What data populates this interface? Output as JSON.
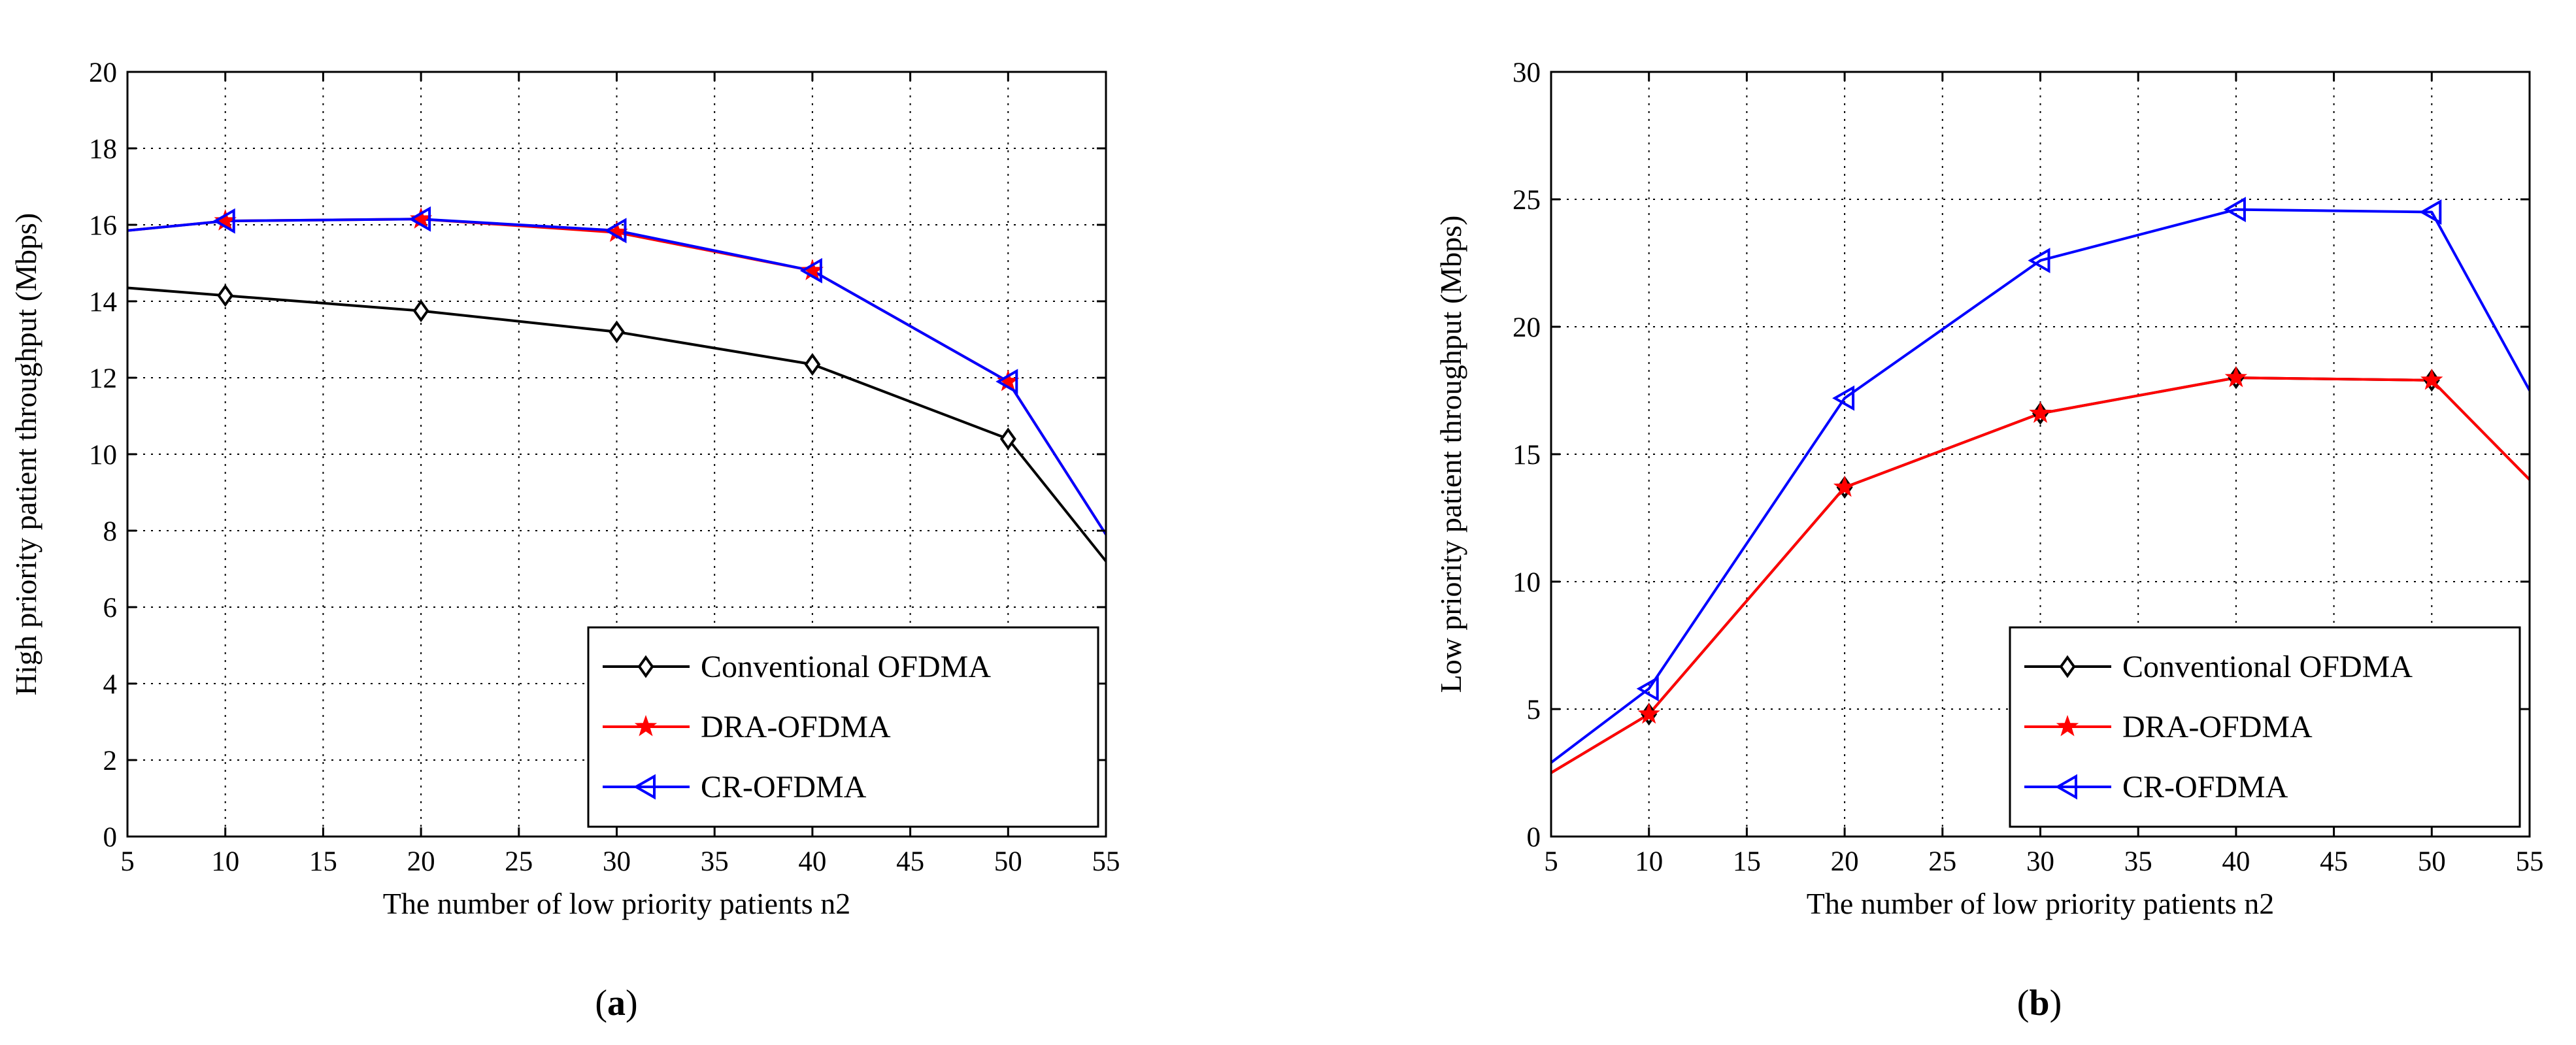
{
  "chart_data": [
    {
      "type": "line",
      "caption": {
        "open": "(",
        "letter": "a",
        "close": ")"
      },
      "xlabel": "The number of low priority patients n2",
      "ylabel": "High priority patient throughput (Mbps)",
      "xlim": [
        5,
        55
      ],
      "ylim": [
        0,
        20
      ],
      "xticks": [
        5,
        10,
        15,
        20,
        25,
        30,
        35,
        40,
        45,
        50,
        55
      ],
      "yticks": [
        0,
        2,
        4,
        6,
        8,
        10,
        12,
        14,
        16,
        18,
        20
      ],
      "grid": true,
      "legend_position": "bottom-right",
      "series": [
        {
          "name": "Conventional OFDMA",
          "color": "#000000",
          "marker": "diamond",
          "x": [
            5,
            10,
            20,
            30,
            40,
            50,
            55
          ],
          "y": [
            14.35,
            14.15,
            13.75,
            13.2,
            12.35,
            10.4,
            7.2
          ],
          "marker_x": [
            10,
            20,
            30,
            40,
            50
          ]
        },
        {
          "name": "DRA-OFDMA",
          "color": "#ff0000",
          "marker": "star",
          "x": [
            5,
            10,
            20,
            30,
            40,
            50,
            55
          ],
          "y": [
            15.85,
            16.1,
            16.15,
            15.8,
            14.8,
            11.9,
            7.9
          ],
          "marker_x": [
            10,
            20,
            30,
            40,
            50
          ]
        },
        {
          "name": "CR-OFDMA",
          "color": "#0000ff",
          "marker": "triangle-left",
          "x": [
            5,
            10,
            20,
            30,
            40,
            50,
            55
          ],
          "y": [
            15.85,
            16.1,
            16.15,
            15.85,
            14.8,
            11.9,
            7.9
          ],
          "marker_x": [
            10,
            20,
            30,
            40,
            50
          ]
        }
      ]
    },
    {
      "type": "line",
      "caption": {
        "open": "(",
        "letter": "b",
        "close": ")"
      },
      "xlabel": "The number of low priority patients n2",
      "ylabel": "Low priority patient throughput (Mbps)",
      "xlim": [
        5,
        55
      ],
      "ylim": [
        0,
        30
      ],
      "xticks": [
        5,
        10,
        15,
        20,
        25,
        30,
        35,
        40,
        45,
        50,
        55
      ],
      "yticks": [
        0,
        5,
        10,
        15,
        20,
        25,
        30
      ],
      "grid": true,
      "legend_position": "bottom-right",
      "series": [
        {
          "name": "Conventional OFDMA",
          "color": "#000000",
          "marker": "diamond",
          "x": [
            5,
            10,
            20,
            30,
            40,
            50,
            55
          ],
          "y": [
            2.5,
            4.8,
            13.7,
            16.6,
            18.0,
            17.9,
            14.0
          ],
          "marker_x": [
            10,
            20,
            30,
            40,
            50
          ]
        },
        {
          "name": "DRA-OFDMA",
          "color": "#ff0000",
          "marker": "star",
          "x": [
            5,
            10,
            20,
            30,
            40,
            50,
            55
          ],
          "y": [
            2.5,
            4.8,
            13.7,
            16.6,
            18.0,
            17.9,
            14.0
          ],
          "marker_x": [
            10,
            20,
            30,
            40,
            50
          ]
        },
        {
          "name": "CR-OFDMA",
          "color": "#0000ff",
          "marker": "triangle-left",
          "x": [
            5,
            10,
            20,
            30,
            40,
            50,
            55
          ],
          "y": [
            2.9,
            5.8,
            17.2,
            22.6,
            24.6,
            24.5,
            17.5
          ],
          "marker_x": [
            10,
            20,
            30,
            40,
            50
          ]
        }
      ]
    }
  ]
}
